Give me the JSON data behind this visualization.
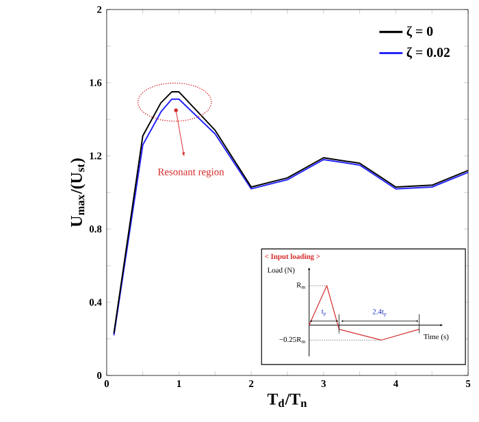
{
  "chart_data": {
    "type": "line",
    "xlabel": "T$_{d}$/T$_{n}$",
    "ylabel": "U$_{max}$/(U$_{st}$)",
    "x": [
      0.1,
      0.5,
      0.75,
      0.9,
      1.0,
      1.5,
      2.0,
      2.5,
      3.0,
      3.5,
      4.0,
      4.5,
      5.0
    ],
    "series": [
      {
        "name": "ζ = 0",
        "color": "#000000",
        "values": [
          0.23,
          1.31,
          1.49,
          1.55,
          1.55,
          1.34,
          1.03,
          1.08,
          1.19,
          1.16,
          1.03,
          1.04,
          1.12
        ]
      },
      {
        "name": "ζ = 0.02",
        "color": "#2424ff",
        "values": [
          0.22,
          1.26,
          1.44,
          1.51,
          1.51,
          1.32,
          1.02,
          1.07,
          1.18,
          1.15,
          1.02,
          1.03,
          1.11
        ]
      }
    ],
    "xlim": [
      0,
      5
    ],
    "ylim": [
      0,
      2
    ],
    "xticks": [
      0,
      {
        "value": 0.5,
        "label": null
      },
      1,
      {
        "value": 1.5,
        "label": null
      },
      2,
      {
        "value": 2.5,
        "label": null
      },
      3,
      {
        "value": 3.5,
        "label": null
      },
      4,
      {
        "value": 4.5,
        "label": null
      },
      5
    ],
    "yticks": [
      0,
      {
        "value": 0.2,
        "label": null
      },
      0.4,
      {
        "value": 0.6,
        "label": null
      },
      0.8,
      {
        "value": 1.0,
        "label": null
      },
      1.2,
      {
        "value": 1.4,
        "label": null
      },
      1.6,
      {
        "value": 1.8,
        "label": null
      },
      2
    ],
    "legend": "top right",
    "marker": "none",
    "line_style": "solid",
    "annotations": [
      "Resonant region",
      "< Input loading >",
      "Load (N)",
      "R$_{m}$",
      "t$_{p}$",
      "2.4t$_{p}$",
      "Time (s)",
      "−0.25R$_{m}$"
    ]
  }
}
